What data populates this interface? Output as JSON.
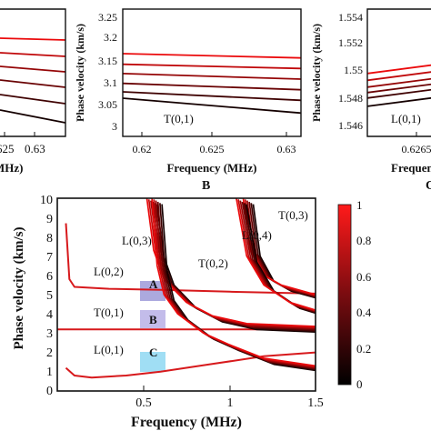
{
  "colors": {
    "dark": "#000000",
    "mid": "#7f0d12",
    "bright": "#e31a1c",
    "frame": "#111111"
  },
  "panels": {
    "a": {
      "xticks": [
        "625",
        "0.63"
      ],
      "xlabel": "MHz)",
      "ylabels": []
    },
    "b": {
      "xticks": [
        "0.62",
        "0.625",
        "0.63"
      ],
      "yticks": [
        "3",
        "3.05",
        "3.1",
        "3.15",
        "3.2",
        "3.25"
      ],
      "ylabel": "Phase velocity (km/s)",
      "xlabel": "Frequency (MHz)",
      "mode": "T(0,1)",
      "letter": "B"
    },
    "c": {
      "xticks": [
        "0.6265"
      ],
      "yticks": [
        "1.546",
        "1.548",
        "1.55",
        "1.552",
        "1.554"
      ],
      "ylabel": "Phase velocity (km/s)",
      "xlabel": "Frequen",
      "mode": "L(0,1)",
      "letter": "C"
    }
  },
  "main": {
    "ylabel": "Phase velocity (km/s)",
    "xlabel": "Frequency (MHz)",
    "yticks": [
      "0",
      "1",
      "2",
      "3",
      "4",
      "5",
      "6",
      "7",
      "8",
      "9",
      "10"
    ],
    "xticks": [
      "0.5",
      "1",
      "1.5"
    ],
    "modes": [
      "L(0,3)",
      "L(0,4)",
      "T(0,3)",
      "T(0,2)",
      "L(0,2)",
      "T(0,1)",
      "L(0,1)"
    ],
    "boxes": [
      "A",
      "B",
      "C"
    ],
    "colorbar_ticks": [
      "0",
      "0.2",
      "0.4",
      "0.6",
      "0.8",
      "1"
    ]
  },
  "chart_data": [
    {
      "type": "line",
      "title": "",
      "xlabel": "Frequency (MHz)",
      "ylabel": "Phase velocity (km/s)",
      "xlim": [
        0.62,
        0.63
      ],
      "ylim": [
        2.98,
        3.28
      ],
      "series": [
        {
          "values": [
            [
              0.62,
              3.175
            ],
            [
              0.63,
              3.165
            ]
          ]
        },
        {
          "values": [
            [
              0.62,
              3.15
            ],
            [
              0.63,
              3.14
            ]
          ]
        },
        {
          "values": [
            [
              0.62,
              3.128
            ],
            [
              0.63,
              3.115
            ]
          ]
        },
        {
          "values": [
            [
              0.62,
              3.105
            ],
            [
              0.63,
              3.09
            ]
          ]
        },
        {
          "values": [
            [
              0.62,
              3.085
            ],
            [
              0.63,
              3.065
            ]
          ]
        },
        {
          "values": [
            [
              0.62,
              3.07
            ],
            [
              0.63,
              3.035
            ]
          ]
        }
      ]
    },
    {
      "type": "line",
      "title": "",
      "xlabel": "Frequency (MHz)",
      "ylabel": "Phase velocity (km/s)",
      "xlim": [
        0.62,
        0.63
      ],
      "ylim": [
        1.5452,
        1.5545
      ],
      "series": [
        {
          "values": [
            [
              0.62,
              1.5498
            ],
            [
              0.63,
              1.5508
            ]
          ]
        },
        {
          "values": [
            [
              0.62,
              1.5493
            ],
            [
              0.63,
              1.5503
            ]
          ]
        },
        {
          "values": [
            [
              0.62,
              1.5488
            ],
            [
              0.63,
              1.5498
            ]
          ]
        },
        {
          "values": [
            [
              0.62,
              1.5484
            ],
            [
              0.63,
              1.5494
            ]
          ]
        },
        {
          "values": [
            [
              0.62,
              1.548
            ],
            [
              0.63,
              1.549
            ]
          ]
        },
        {
          "values": [
            [
              0.62,
              1.5474
            ],
            [
              0.63,
              1.5484
            ]
          ]
        }
      ]
    },
    {
      "type": "line",
      "title": "",
      "xlabel": "Frequency (MHz)",
      "ylabel": "Phase velocity (km/s)",
      "xlim": [
        0.0,
        1.5
      ],
      "ylim": [
        0,
        10
      ],
      "colorbar": {
        "range": [
          0,
          1
        ],
        "ticks": [
          0,
          0.2,
          0.4,
          0.6,
          0.8,
          1
        ]
      },
      "series": [
        {
          "name": "T(0,1)",
          "values": [
            [
              0.0,
              3.2
            ],
            [
              1.5,
              3.2
            ]
          ]
        },
        {
          "name": "L(0,1)",
          "values": [
            [
              0.05,
              1.2
            ],
            [
              0.1,
              0.8
            ],
            [
              0.2,
              0.7
            ],
            [
              0.4,
              0.8
            ],
            [
              0.6,
              1.0
            ],
            [
              0.9,
              1.4
            ],
            [
              1.2,
              1.8
            ],
            [
              1.5,
              2.0
            ]
          ]
        },
        {
          "name": "L(0,2)",
          "values": [
            [
              0.05,
              8.7
            ],
            [
              0.07,
              5.8
            ],
            [
              0.1,
              5.4
            ],
            [
              0.3,
              5.3
            ],
            [
              0.6,
              5.25
            ],
            [
              1.0,
              5.15
            ],
            [
              1.5,
              5.05
            ]
          ]
        },
        {
          "name": "T(0,2)",
          "values": [
            [
              0.52,
              10.0
            ],
            [
              0.56,
              7.3
            ],
            [
              0.62,
              5.8
            ],
            [
              0.75,
              4.6
            ],
            [
              0.9,
              3.9
            ],
            [
              1.1,
              3.5
            ],
            [
              1.5,
              3.35
            ]
          ]
        },
        {
          "name": "L(0,3)",
          "values": [
            [
              0.55,
              10.0
            ],
            [
              0.58,
              6.5
            ],
            [
              0.62,
              5.0
            ],
            [
              0.7,
              4.0
            ],
            [
              0.85,
              3.0
            ],
            [
              1.0,
              2.4
            ],
            [
              1.2,
              1.7
            ],
            [
              1.5,
              1.3
            ]
          ]
        },
        {
          "name": "L(0,4)",
          "values": [
            [
              1.08,
              10.0
            ],
            [
              1.12,
              7.3
            ],
            [
              1.2,
              6.0
            ],
            [
              1.3,
              5.5
            ],
            [
              1.5,
              5.0
            ]
          ]
        },
        {
          "name": "T(0,3)",
          "values": [
            [
              1.04,
              10.0
            ],
            [
              1.1,
              7.0
            ],
            [
              1.2,
              5.5
            ],
            [
              1.35,
              4.6
            ],
            [
              1.5,
              4.2
            ]
          ]
        }
      ]
    }
  ]
}
